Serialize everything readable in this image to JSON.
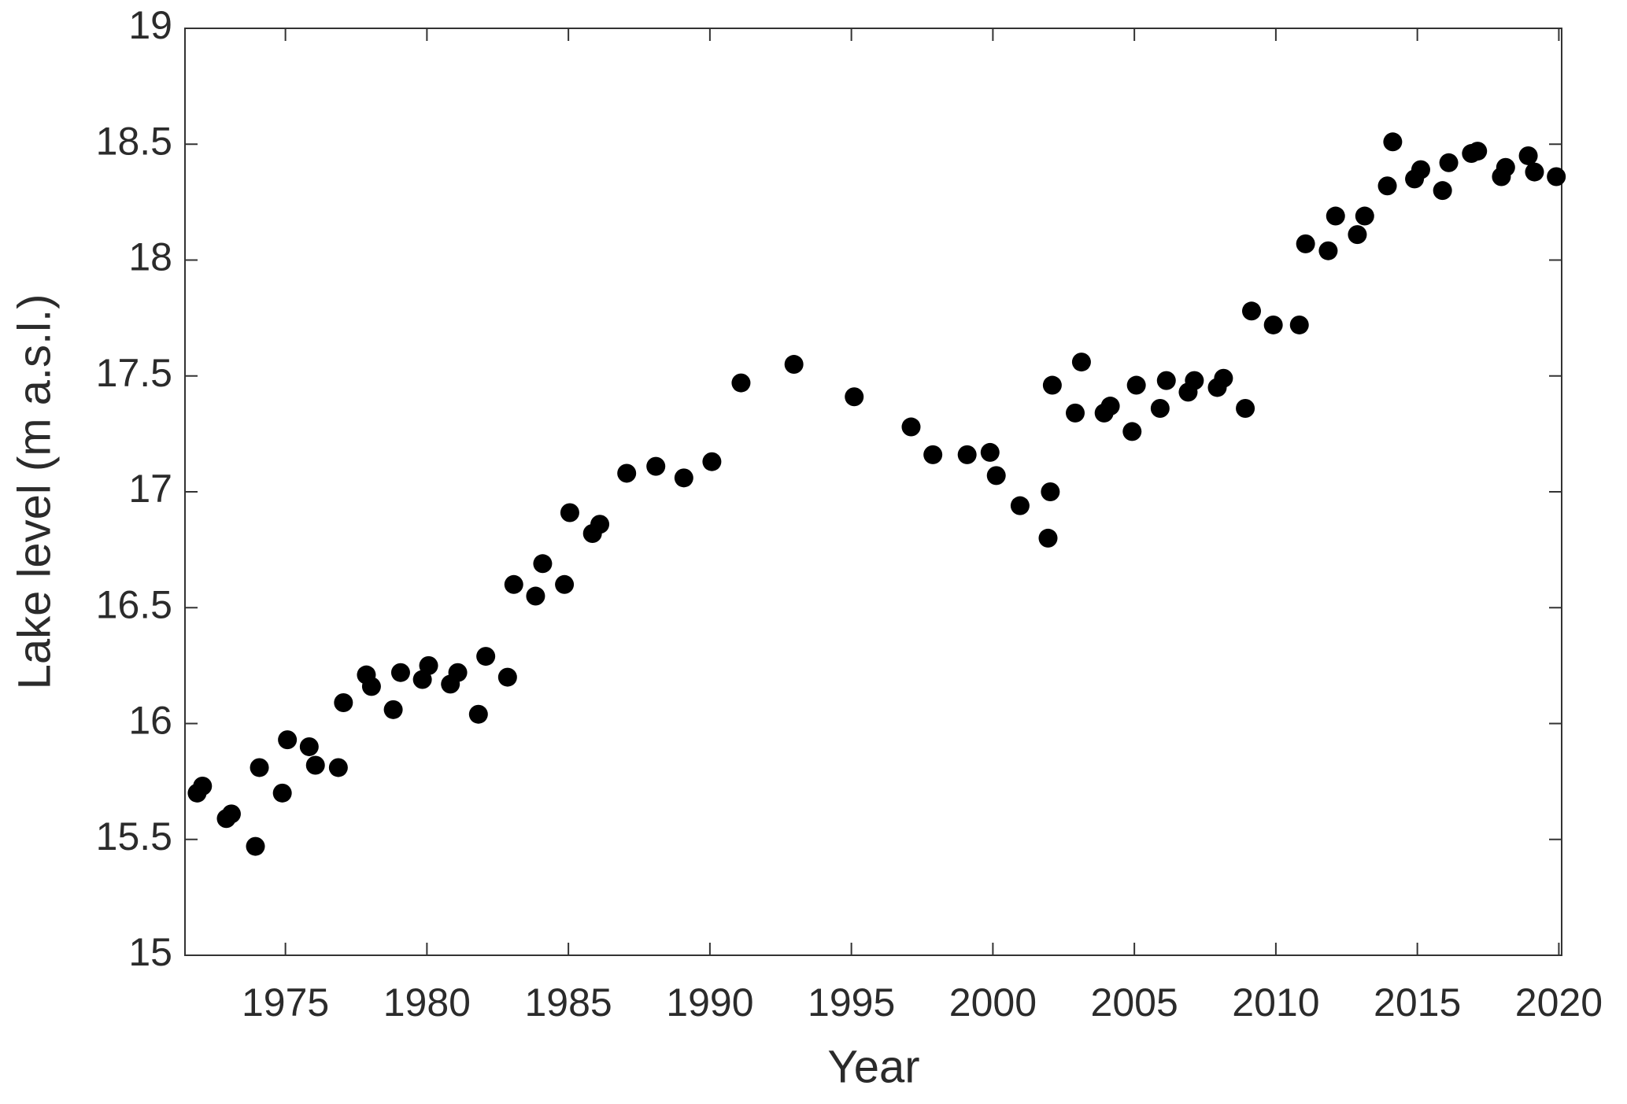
{
  "chart_data": {
    "type": "scatter",
    "xlabel": "Year",
    "ylabel": "Lake level (m a.s.l.)",
    "x": [
      1971.88,
      1972.07,
      1972.91,
      1973.09,
      1973.94,
      1974.08,
      1974.89,
      1975.07,
      1975.84,
      1976.06,
      1976.87,
      1977.05,
      1977.86,
      1978.04,
      1978.81,
      1979.07,
      1979.84,
      1980.06,
      1980.83,
      1981.09,
      1981.82,
      1982.08,
      1982.85,
      1983.07,
      1983.84,
      1984.09,
      1984.86,
      1985.05,
      1985.85,
      1986.11,
      1987.06,
      1988.09,
      1989.08,
      1990.07,
      1991.1,
      1992.97,
      1995.1,
      1997.11,
      1997.88,
      1999.09,
      1999.9,
      2000.12,
      2000.96,
      2001.95,
      2002.03,
      2002.1,
      2002.91,
      2003.13,
      2003.93,
      2004.15,
      2004.92,
      2005.07,
      2005.91,
      2006.13,
      2006.9,
      2007.12,
      2007.93,
      2008.15,
      2008.92,
      2009.14,
      2009.91,
      2010.83,
      2011.05,
      2011.85,
      2012.11,
      2012.88,
      2013.14,
      2013.94,
      2014.13,
      2014.9,
      2015.12,
      2015.89,
      2016.11,
      2016.91,
      2017.13,
      2017.97,
      2018.12,
      2018.92,
      2019.14,
      2019.91
    ],
    "values": [
      15.7,
      15.73,
      15.59,
      15.61,
      15.47,
      15.81,
      15.7,
      15.93,
      15.9,
      15.82,
      15.81,
      16.09,
      16.21,
      16.16,
      16.06,
      16.22,
      16.19,
      16.25,
      16.17,
      16.22,
      16.04,
      16.29,
      16.2,
      16.6,
      16.55,
      16.69,
      16.6,
      16.91,
      16.82,
      16.86,
      17.08,
      17.11,
      17.06,
      17.13,
      17.47,
      17.55,
      17.41,
      17.28,
      17.16,
      17.16,
      17.17,
      17.07,
      16.94,
      16.8,
      17.0,
      17.46,
      17.34,
      17.56,
      17.34,
      17.37,
      17.26,
      17.46,
      17.36,
      17.48,
      17.43,
      17.48,
      17.45,
      17.49,
      17.36,
      17.78,
      17.72,
      17.72,
      18.07,
      18.04,
      18.19,
      18.11,
      18.19,
      18.32,
      18.51,
      18.35,
      18.39,
      18.3,
      18.42,
      18.46,
      18.47,
      18.36,
      18.4,
      18.45,
      18.38,
      18.36
    ],
    "color": "#000000",
    "xlim": [
      1971.45,
      2020.1
    ],
    "xticks": [
      1975,
      1980,
      1985,
      1990,
      1995,
      2000,
      2005,
      2010,
      2015,
      2020
    ],
    "ylim": [
      15,
      19
    ],
    "yticks": [
      15,
      15.5,
      16,
      16.5,
      17,
      17.5,
      18,
      18.5,
      19
    ],
    "grid": false
  }
}
